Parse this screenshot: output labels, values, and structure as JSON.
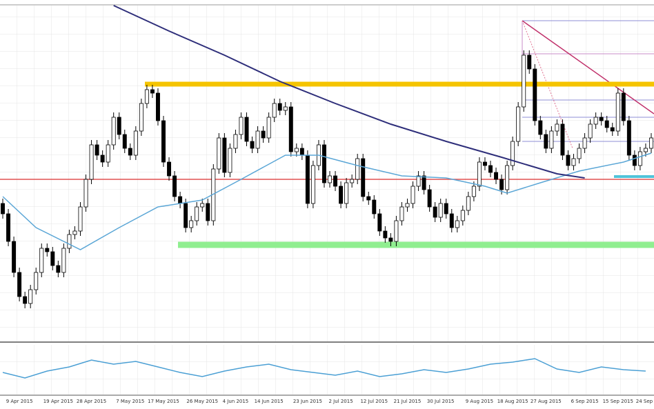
{
  "chart_data": {
    "type": "candlestick",
    "ylim": [
      0,
      487
    ],
    "categories": [
      null,
      null,
      null,
      "9 Apr 2015",
      null,
      null,
      null,
      null,
      null,
      null,
      "19 Apr 2015",
      null,
      null,
      null,
      null,
      null,
      "28 Apr 2015",
      null,
      null,
      null,
      null,
      null,
      null,
      "7 May 2015",
      null,
      null,
      null,
      null,
      null,
      "17 May 2015",
      null,
      null,
      null,
      null,
      null,
      null,
      "26 May 2015",
      null,
      null,
      null,
      null,
      null,
      "4 Jun 2015",
      null,
      null,
      null,
      null,
      null,
      "14 Jun 2015",
      null,
      null,
      null,
      null,
      null,
      null,
      "23 Jun 2015",
      null,
      null,
      null,
      null,
      null,
      "2 Jul 2015",
      null,
      null,
      null,
      null,
      null,
      "12 Jul 2015",
      null,
      null,
      null,
      null,
      null,
      "21 Jul 2015",
      null,
      null,
      null,
      null,
      null,
      "30 Jul 2015",
      null,
      null,
      null,
      null,
      null,
      null,
      "9 Aug 2015",
      null,
      null,
      null,
      null,
      null,
      "18 Aug 2015",
      null,
      null,
      null,
      null,
      null,
      "27 Aug 2015",
      null,
      null,
      null,
      null,
      null,
      null,
      "6 Sep 2015",
      null,
      null,
      null,
      null,
      null,
      "15 Sep 2015",
      null,
      null,
      null,
      null,
      null,
      "24 Sep 2015"
    ],
    "open": [
      200,
      185,
      145,
      100,
      65,
      55,
      75,
      100,
      135,
      130,
      110,
      100,
      135,
      155,
      160,
      195,
      235,
      285,
      270,
      260,
      285,
      325,
      300,
      280,
      270,
      305,
      345,
      365,
      360,
      320,
      260,
      240,
      210,
      200,
      165,
      175,
      195,
      200,
      175,
      250,
      295,
      245,
      280,
      300,
      325,
      290,
      280,
      305,
      295,
      325,
      345,
      335,
      340,
      275,
      280,
      270,
      200,
      255,
      285,
      230,
      240,
      225,
      200,
      230,
      235,
      265,
      210,
      205,
      185,
      160,
      150,
      145,
      175,
      195,
      200,
      225,
      240,
      220,
      195,
      180,
      200,
      185,
      165,
      175,
      190,
      210,
      225,
      260,
      255,
      245,
      235,
      220,
      255,
      290,
      340,
      415,
      395,
      320,
      300,
      280,
      305,
      315,
      270,
      255,
      265,
      280,
      295,
      315,
      325,
      320,
      310,
      305,
      360,
      320,
      270,
      255,
      275,
      280
    ],
    "high": [
      207,
      192,
      152,
      107,
      72,
      82,
      107,
      142,
      142,
      137,
      117,
      142,
      162,
      167,
      202,
      242,
      292,
      292,
      277,
      292,
      332,
      332,
      307,
      287,
      312,
      352,
      372,
      372,
      367,
      327,
      267,
      247,
      217,
      207,
      182,
      202,
      207,
      207,
      257,
      302,
      302,
      287,
      307,
      332,
      332,
      297,
      312,
      312,
      332,
      352,
      352,
      347,
      347,
      287,
      287,
      277,
      262,
      292,
      292,
      247,
      247,
      232,
      237,
      242,
      272,
      272,
      217,
      212,
      192,
      167,
      157,
      182,
      202,
      207,
      232,
      247,
      247,
      227,
      202,
      207,
      207,
      192,
      182,
      197,
      217,
      232,
      267,
      267,
      262,
      252,
      242,
      262,
      297,
      347,
      422,
      422,
      402,
      327,
      307,
      312,
      322,
      322,
      277,
      272,
      287,
      302,
      322,
      332,
      332,
      327,
      317,
      367,
      367,
      327,
      277,
      282,
      287,
      302
    ],
    "low": [
      178,
      138,
      93,
      58,
      48,
      48,
      68,
      93,
      123,
      103,
      93,
      93,
      128,
      148,
      153,
      188,
      228,
      263,
      253,
      253,
      278,
      293,
      273,
      263,
      263,
      298,
      338,
      353,
      313,
      253,
      233,
      203,
      193,
      158,
      158,
      168,
      188,
      168,
      168,
      243,
      238,
      238,
      273,
      293,
      283,
      273,
      273,
      288,
      288,
      318,
      328,
      328,
      268,
      268,
      263,
      193,
      193,
      248,
      223,
      223,
      218,
      193,
      193,
      223,
      228,
      203,
      198,
      178,
      153,
      143,
      138,
      138,
      168,
      188,
      193,
      218,
      213,
      188,
      173,
      173,
      178,
      158,
      158,
      168,
      183,
      203,
      218,
      248,
      238,
      228,
      213,
      213,
      248,
      283,
      333,
      388,
      313,
      293,
      273,
      273,
      298,
      263,
      248,
      248,
      258,
      273,
      288,
      308,
      313,
      303,
      298,
      298,
      313,
      263,
      248,
      248,
      268,
      273
    ],
    "close": [
      185,
      145,
      100,
      65,
      55,
      75,
      100,
      135,
      130,
      110,
      100,
      135,
      155,
      160,
      195,
      235,
      285,
      270,
      260,
      285,
      325,
      300,
      280,
      270,
      305,
      345,
      365,
      360,
      320,
      260,
      240,
      210,
      200,
      165,
      175,
      195,
      200,
      175,
      250,
      295,
      245,
      280,
      300,
      325,
      290,
      280,
      305,
      295,
      325,
      345,
      335,
      340,
      275,
      280,
      270,
      200,
      255,
      285,
      230,
      240,
      225,
      200,
      230,
      235,
      265,
      210,
      205,
      185,
      160,
      150,
      145,
      175,
      195,
      200,
      225,
      240,
      220,
      195,
      180,
      200,
      185,
      165,
      175,
      190,
      210,
      225,
      260,
      255,
      245,
      235,
      220,
      255,
      290,
      340,
      415,
      395,
      320,
      300,
      280,
      305,
      315,
      270,
      255,
      265,
      280,
      295,
      315,
      325,
      320,
      310,
      305,
      360,
      320,
      270,
      255,
      275,
      280,
      295
    ],
    "ma": [
      {
        "color": "#5aa6d6",
        "x": [
          0,
          6,
          14,
          21,
          28,
          36,
          43,
          51,
          57,
          64,
          72,
          80,
          87,
          91,
          97,
          104,
          112,
          117
        ],
        "values": [
          210,
          165,
          133,
          165,
          195,
          205,
          235,
          270,
          270,
          255,
          240,
          237,
          225,
          215,
          230,
          247,
          260,
          273
        ]
      },
      {
        "color": "#2e2e7a",
        "x": [
          20,
          30,
          40,
          50,
          60,
          70,
          80,
          90,
          95,
          100,
          105
        ],
        "values": [
          487,
          450,
          415,
          377,
          345,
          315,
          290,
          267,
          255,
          243,
          237
        ]
      }
    ],
    "levels": [
      {
        "value": 373,
        "color": "#f5c400"
      },
      {
        "value": 140,
        "color": "#90ee90"
      },
      {
        "value": 235,
        "color": "#e05050"
      },
      {
        "value": 239,
        "color": "#4fc3d9"
      }
    ],
    "oscillator": {
      "color": "#4a9fd4",
      "ylim": [
        0,
        75
      ],
      "x": [
        0,
        4,
        8,
        12,
        16,
        20,
        24,
        28,
        32,
        36,
        40,
        44,
        48,
        52,
        56,
        60,
        64,
        68,
        72,
        76,
        80,
        84,
        88,
        92,
        96,
        100,
        104,
        108,
        112,
        116
      ],
      "values": [
        35,
        27,
        37,
        43,
        53,
        47,
        51,
        43,
        35,
        29,
        37,
        43,
        47,
        39,
        35,
        31,
        37,
        29,
        33,
        39,
        35,
        40,
        47,
        50,
        55,
        40,
        35,
        43,
        39,
        37
      ]
    }
  }
}
